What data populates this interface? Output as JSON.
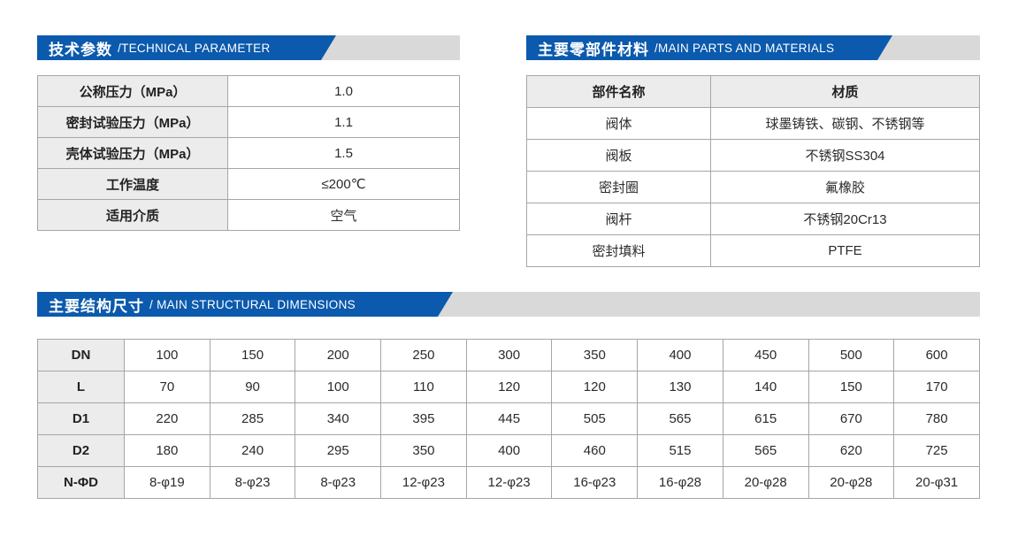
{
  "colors": {
    "banner_blue": "#0b5aad",
    "banner_gray": "#d9d9d9",
    "cell_gray": "#ececec",
    "border_gray": "#a6a6a6"
  },
  "banners": {
    "technical": {
      "zh": "技术参数",
      "en": "/TECHNICAL PARAMETER"
    },
    "materials": {
      "zh": "主要零部件材料",
      "en": "/MAIN PARTS AND MATERIALS"
    },
    "dimensions": {
      "zh": "主要结构尺寸",
      "en": "/ MAIN STRUCTURAL DIMENSIONS"
    }
  },
  "technical_table": {
    "rows": [
      {
        "label": "公称压力（MPa）",
        "value": "1.0"
      },
      {
        "label": "密封试验压力（MPa）",
        "value": "1.1"
      },
      {
        "label": "壳体试验压力（MPa）",
        "value": "1.5"
      },
      {
        "label": "工作温度",
        "value": "≤200℃"
      },
      {
        "label": "适用介质",
        "value": "空气"
      }
    ]
  },
  "materials_table": {
    "headers": {
      "part": "部件名称",
      "material": "材质"
    },
    "rows": [
      {
        "part": "阀体",
        "material": "球墨铸铁、碳钢、不锈钢等"
      },
      {
        "part": "阀板",
        "material": "不锈钢SS304"
      },
      {
        "part": "密封圈",
        "material": "氟橡胶"
      },
      {
        "part": "阀杆",
        "material": "不锈钢20Cr13"
      },
      {
        "part": "密封填料",
        "material": "PTFE"
      }
    ]
  },
  "dimensions_table": {
    "rows": [
      {
        "label": "DN",
        "values": [
          "100",
          "150",
          "200",
          "250",
          "300",
          "350",
          "400",
          "450",
          "500",
          "600"
        ]
      },
      {
        "label": "L",
        "values": [
          "70",
          "90",
          "100",
          "110",
          "120",
          "120",
          "130",
          "140",
          "150",
          "170"
        ]
      },
      {
        "label": "D1",
        "values": [
          "220",
          "285",
          "340",
          "395",
          "445",
          "505",
          "565",
          "615",
          "670",
          "780"
        ]
      },
      {
        "label": "D2",
        "values": [
          "180",
          "240",
          "295",
          "350",
          "400",
          "460",
          "515",
          "565",
          "620",
          "725"
        ]
      },
      {
        "label": "N-ΦD",
        "values": [
          "8-φ19",
          "8-φ23",
          "8-φ23",
          "12-φ23",
          "12-φ23",
          "16-φ23",
          "16-φ28",
          "20-φ28",
          "20-φ28",
          "20-φ31"
        ]
      }
    ]
  }
}
